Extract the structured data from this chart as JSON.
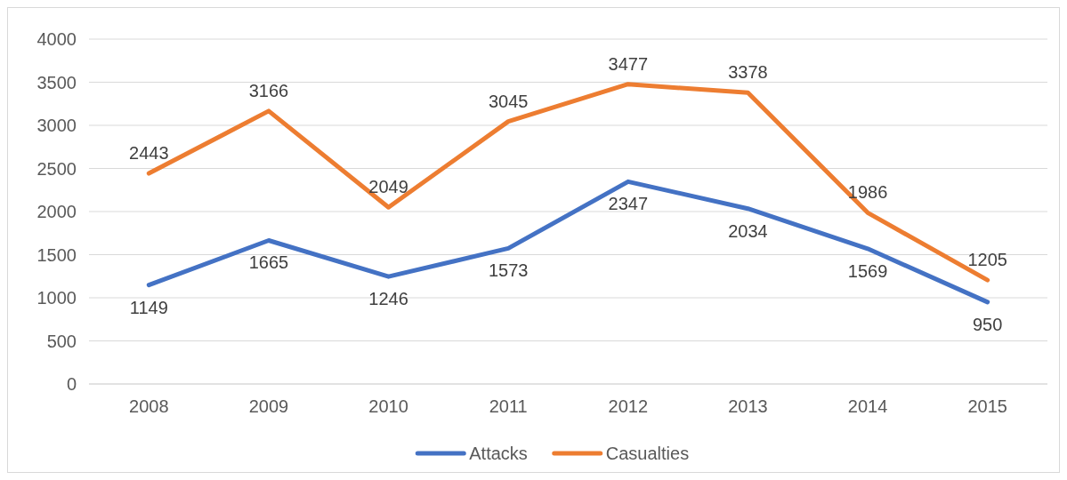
{
  "chart_data": {
    "type": "line",
    "categories": [
      "2008",
      "2009",
      "2010",
      "2011",
      "2012",
      "2013",
      "2014",
      "2015"
    ],
    "series": [
      {
        "name": "Attacks",
        "color": "#4472c4",
        "values": [
          1149,
          1665,
          1246,
          1573,
          2347,
          2034,
          1569,
          950
        ]
      },
      {
        "name": "Casualties",
        "color": "#ed7d31",
        "values": [
          2443,
          3166,
          2049,
          3045,
          3477,
          3378,
          1986,
          1205
        ]
      }
    ],
    "ylim": [
      0,
      4000
    ],
    "yticks": [
      0,
      500,
      1000,
      1500,
      2000,
      2500,
      3000,
      3500,
      4000
    ],
    "grid": "y",
    "legend": "bottom",
    "data_labels": true,
    "marker": "none",
    "line_style": "solid"
  }
}
